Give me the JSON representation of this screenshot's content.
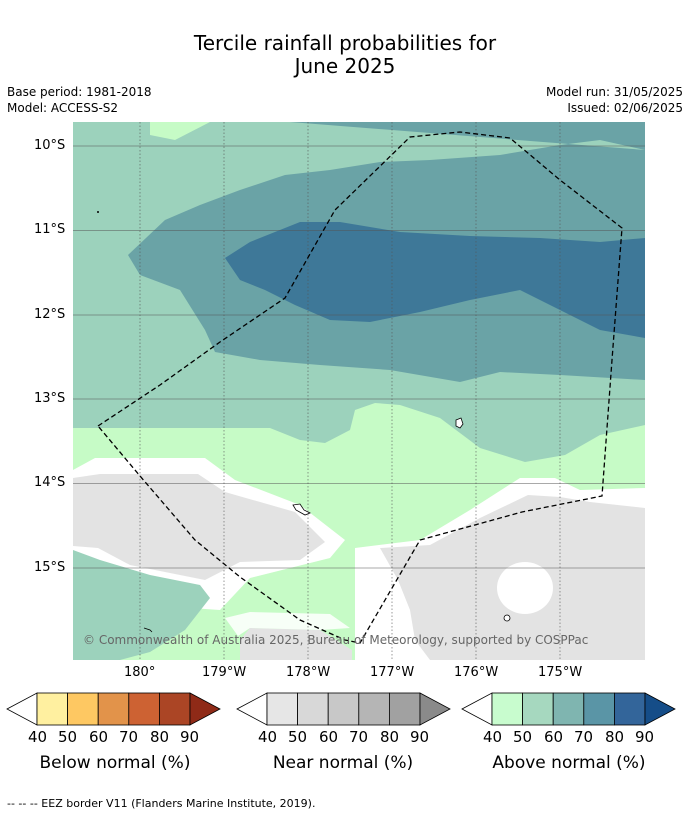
{
  "title": {
    "line1": "Tercile rainfall probabilities for",
    "line2": "June 2025"
  },
  "meta": {
    "base_period": "Base period: 1981-2018",
    "model": "Model: ACCESS-S2",
    "model_run": "Model run: 31/05/2025",
    "issued": "Issued: 02/06/2025"
  },
  "map": {
    "lat_labels": [
      "10°S",
      "11°S",
      "12°S",
      "13°S",
      "14°S",
      "15°S"
    ],
    "lon_labels": [
      "180°",
      "179°W",
      "178°W",
      "177°W",
      "176°W",
      "175°W"
    ],
    "copyright": "© Commonwealth of Australia 2025, Bureau of Meteorology, supported by COSPPac",
    "colors": {
      "above_50": "#c6fbc6",
      "above_60": "#9cd2bc",
      "above_70": "#6aa3a6",
      "above_80": "#3e7898",
      "near": "#e3e3e3",
      "background": "#ffffff"
    }
  },
  "colorbars": [
    {
      "label": "Below normal (%)",
      "ticks": [
        "40",
        "50",
        "60",
        "70",
        "80",
        "90"
      ],
      "colors": [
        "#fff0a0",
        "#fec862",
        "#e2934a",
        "#cd6233",
        "#ab4525",
        "#8f2a17"
      ]
    },
    {
      "label": "Near normal (%)",
      "ticks": [
        "40",
        "50",
        "60",
        "70",
        "80",
        "90"
      ],
      "colors": [
        "#e6e6e6",
        "#d8d8d8",
        "#c8c8c8",
        "#b5b5b5",
        "#a1a1a1",
        "#8a8a8a"
      ]
    },
    {
      "label": "Above normal (%)",
      "ticks": [
        "40",
        "50",
        "60",
        "70",
        "80",
        "90"
      ],
      "colors": [
        "#c8fcce",
        "#a6d8bf",
        "#7fb5b0",
        "#5a95a6",
        "#33659a",
        "#154d88"
      ]
    }
  ],
  "footnote": "--  --  -- EEZ border V11 (Flanders Marine Institute, 2019)."
}
